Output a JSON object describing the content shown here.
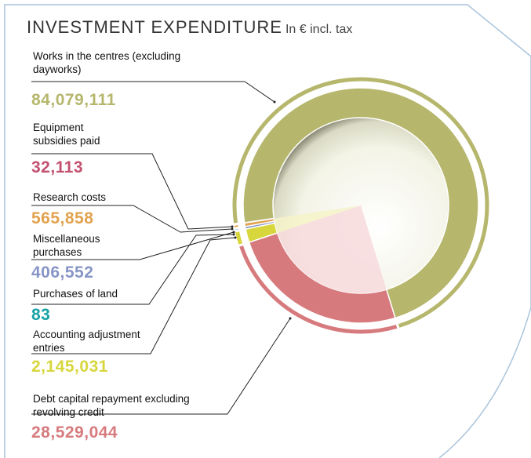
{
  "chart_data": {
    "type": "donut",
    "title": "INVESTMENT EXPENDITURE",
    "subtitle": "In € incl. tax",
    "categories": [
      "Works in the centres (excluding dayworks)",
      "Equipment subsidies paid",
      "Research costs",
      "Miscellaneous purchases",
      "Purchases of land",
      "Accounting adjustment entries",
      "Debt capital repayment excluding revolving credit"
    ],
    "values": [
      84079111,
      32113,
      565858,
      406552,
      83,
      2145031,
      28529044
    ],
    "value_labels": [
      "84,079,111",
      "32,113",
      "565,858",
      "406,552",
      "83",
      "2,145,031",
      "28,529,044"
    ],
    "colors": [
      "#b6b76c",
      "#c2506f",
      "#e2a24e",
      "#8795c6",
      "#17a2a6",
      "#d7d63c",
      "#d77a7d"
    ]
  }
}
